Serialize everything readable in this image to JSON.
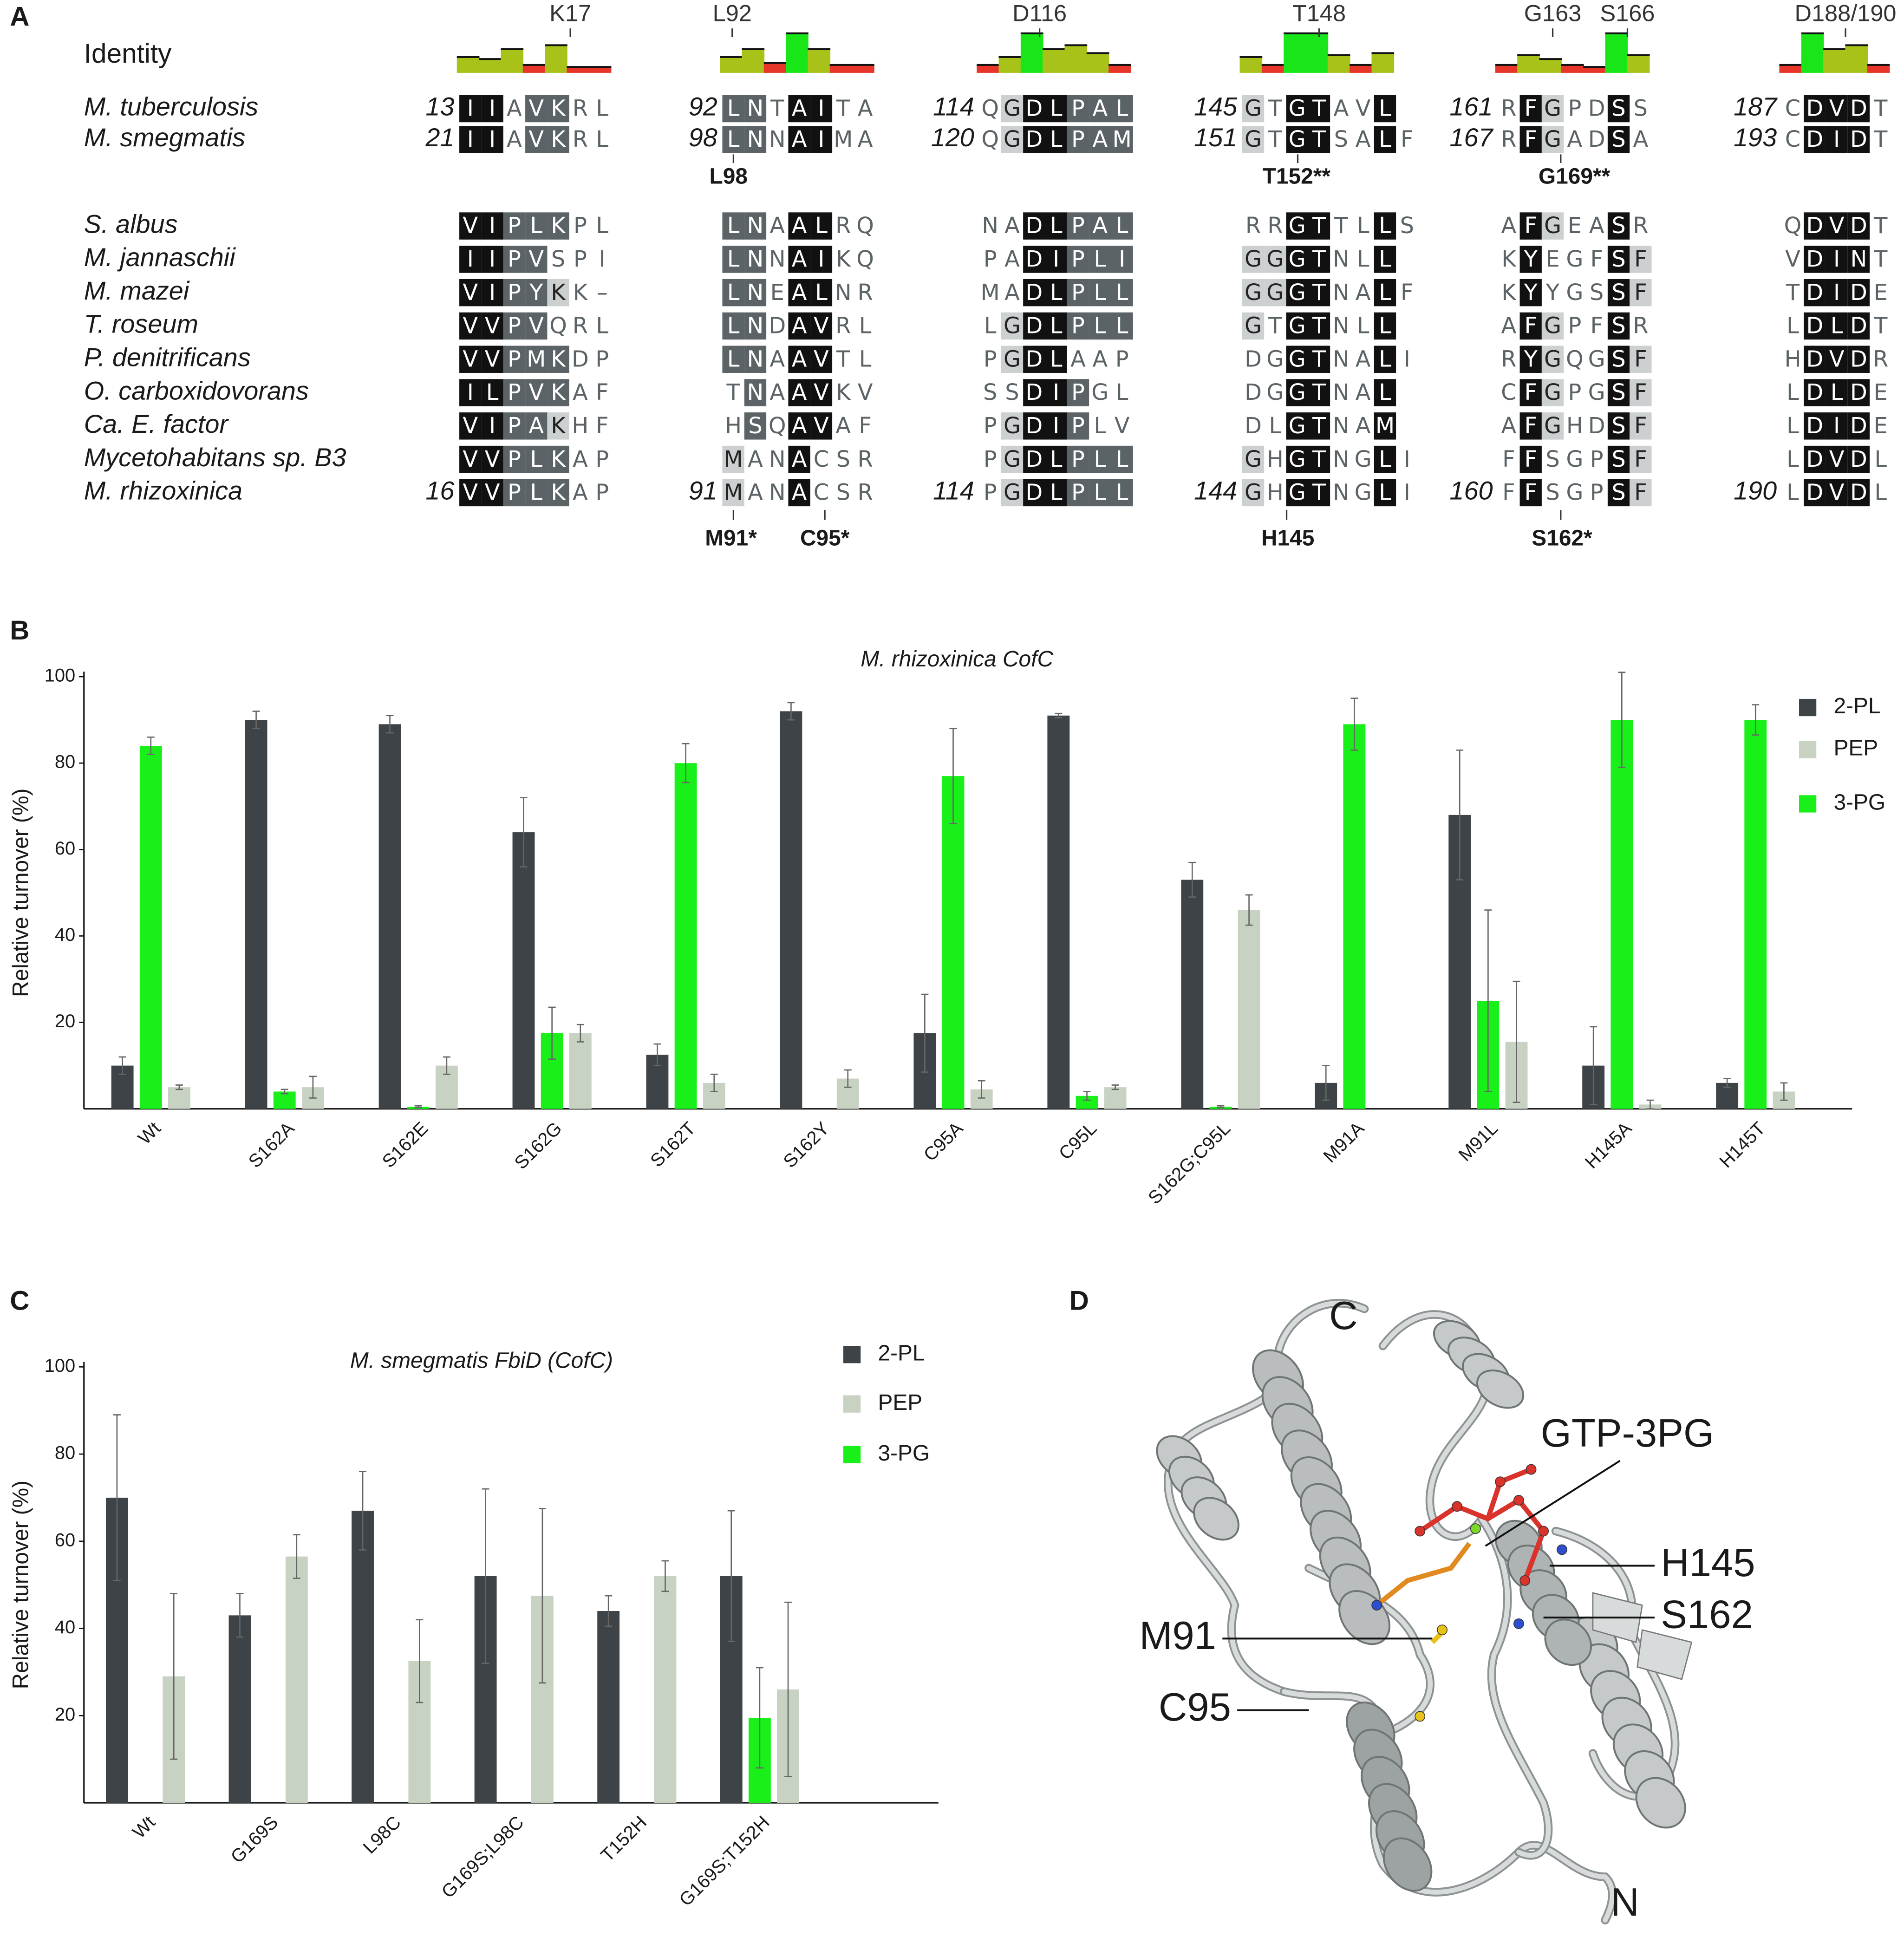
{
  "panels": [
    "A",
    "B",
    "C",
    "D"
  ],
  "alignment": {
    "identity_label": "Identity",
    "identity_colors": {
      "high": "#19e619",
      "mid": "#a8c21a",
      "low": "#e8352a"
    },
    "blocks": [
      {
        "markers": [
          "K17"
        ],
        "identity": [
          40,
          35,
          60,
          20,
          70,
          15,
          15
        ]
      },
      {
        "markers": [
          "L92"
        ],
        "identity": [
          40,
          60,
          25,
          100,
          60,
          20,
          20
        ]
      },
      {
        "markers": [
          "D116"
        ],
        "identity": [
          20,
          40,
          100,
          60,
          70,
          50,
          20
        ]
      },
      {
        "markers": [
          "T148"
        ],
        "identity": [
          40,
          20,
          100,
          100,
          45,
          20,
          50
        ]
      },
      {
        "markers": [
          "G163",
          "S166"
        ],
        "identity": [
          20,
          45,
          35,
          20,
          15,
          100,
          45
        ]
      },
      {
        "markers": [
          "D188/190"
        ],
        "identity": [
          20,
          100,
          60,
          70,
          20
        ]
      }
    ],
    "rows": [
      {
        "species": "M. tuberculosis",
        "blocks": [
          {
            "start": 13,
            "seq": "IIAVKRL",
            "shade": "kknddnn"
          },
          {
            "start": 92,
            "seq": "LNTAITA",
            "shade": "ddnkknn"
          },
          {
            "start": 114,
            "seq": "QGDLPAL",
            "shade": "nlkkddd"
          },
          {
            "start": 145,
            "seq": "GTGTAVL",
            "shade": "lnkknnk"
          },
          {
            "start": 161,
            "seq": "RFGPDSS",
            "shade": "nklnnkn"
          },
          {
            "start": 187,
            "seq": "CDVDT",
            "shade": "nkkkn"
          }
        ]
      },
      {
        "species": "M. smegmatis",
        "blocks": [
          {
            "start": 21,
            "seq": "IIAVKRL",
            "shade": "kknddnn"
          },
          {
            "start": 98,
            "seq": "LNNAIMA",
            "shade": "ddnkknn"
          },
          {
            "start": 120,
            "seq": "QGDLPAM",
            "shade": "nlkkddd"
          },
          {
            "start": 151,
            "seq": "GTGTSALF",
            "shade": "lnkknnkn"
          },
          {
            "start": 167,
            "seq": "RFGADSA",
            "shade": "nklnnkn"
          },
          {
            "start": 193,
            "seq": "CDIDT",
            "shade": "nkkkn"
          }
        ]
      },
      {
        "species": "S. albus",
        "blocks": [
          {
            "seq": "VIPLKPL",
            "shade": "kkdddnn"
          },
          {
            "seq": "LNAALRQ",
            "shade": "ddnkknn"
          },
          {
            "seq": "NADLPAL",
            "shade": "nnkkddd"
          },
          {
            "seq": "RRGTTLLS",
            "shade": "nnkknnkn"
          },
          {
            "seq": "AFGEASR",
            "shade": "nklnnkn"
          },
          {
            "seq": "QDVDT",
            "shade": "nkkkn"
          }
        ]
      },
      {
        "species": "M. jannaschii",
        "blocks": [
          {
            "seq": "IIPVSPI",
            "shade": "kkddnnn"
          },
          {
            "seq": "LNNAIKQ",
            "shade": "ddnkknn"
          },
          {
            "seq": "PADIPLI",
            "shade": "nnkkddd"
          },
          {
            "seq": "GGGTNLL",
            "shade": "llkknnk"
          },
          {
            "seq": "KYEGFSF",
            "shade": "nknnnkl"
          },
          {
            "seq": "VDINT",
            "shade": "nkkkn"
          }
        ]
      },
      {
        "species": "M. mazei",
        "blocks": [
          {
            "seq": "VIPYKK–",
            "shade": "kkddlnn"
          },
          {
            "seq": "LNEALNR",
            "shade": "ddnkknn"
          },
          {
            "seq": "MADLPLL",
            "shade": "nnkkddd"
          },
          {
            "seq": "GGGTNALF",
            "shade": "llkknnkn"
          },
          {
            "seq": "KYYGSSF",
            "shade": "nknnnkl"
          },
          {
            "seq": "TDIDE",
            "shade": "nkkkn"
          }
        ]
      },
      {
        "species": "T. roseum",
        "blocks": [
          {
            "seq": "VVPVQRL",
            "shade": "kkddnnn"
          },
          {
            "seq": "LNDAVRL",
            "shade": "ddnkknn"
          },
          {
            "seq": "LGDLPLL",
            "shade": "nlkkddd"
          },
          {
            "seq": "GTGTNLL",
            "shade": "lnkknnk"
          },
          {
            "seq": "AFGPFSR",
            "shade": "nklnnkn"
          },
          {
            "seq": "LDLDT",
            "shade": "nkkkn"
          }
        ]
      },
      {
        "species": "P. denitrificans",
        "blocks": [
          {
            "seq": "VVPMKDP",
            "shade": "kkdddnn"
          },
          {
            "seq": "LNAAVTL",
            "shade": "ddnkknn"
          },
          {
            "seq": "PGDLAAP",
            "shade": "nlkknnn"
          },
          {
            "seq": "DGGTNALI",
            "shade": "nnkknnkn"
          },
          {
            "seq": "RYGQGSF",
            "shade": "nklnnkl"
          },
          {
            "seq": "HDVDR",
            "shade": "nkkkn"
          }
        ]
      },
      {
        "species": "O. carboxidovorans",
        "blocks": [
          {
            "seq": "ILPVKAF",
            "shade": "kkdddnn"
          },
          {
            "seq": "TNAAVKV",
            "shade": "ndnkknn"
          },
          {
            "seq": "SSDIPGL",
            "shade": "nnkkdnn"
          },
          {
            "seq": "DGGTNAL",
            "shade": "nnkknnk"
          },
          {
            "seq": "CFGPGSF",
            "shade": "nklnnkl"
          },
          {
            "seq": "LDLDE",
            "shade": "nkkkn"
          }
        ]
      },
      {
        "species": "Ca. E. factor",
        "blocks": [
          {
            "seq": "VIPAKHF",
            "shade": "kkddlnn"
          },
          {
            "seq": "HSQAVAF",
            "shade": "ndnkknn"
          },
          {
            "seq": "PGDIPLV",
            "shade": "nlkkdnn"
          },
          {
            "seq": "DLGTNAM",
            "shade": "nnkknnk"
          },
          {
            "seq": "AFGHDSF",
            "shade": "nklnnkl"
          },
          {
            "seq": "LDIDE",
            "shade": "nkkkn"
          }
        ]
      },
      {
        "species": "Mycetohabitans sp. B3",
        "blocks": [
          {
            "seq": "VVPLKAP",
            "shade": "kkdddnn"
          },
          {
            "seq": "MANACSR",
            "shade": "lnnknnn"
          },
          {
            "seq": "PGDLPLL",
            "shade": "nlkkddd"
          },
          {
            "seq": "GHGTNGLI",
            "shade": "lnkknnkn"
          },
          {
            "seq": "FFSGPSF",
            "shade": "nknnnkl"
          },
          {
            "seq": "LDVDL",
            "shade": "nkkkn"
          }
        ]
      },
      {
        "species": "M. rhizoxinica",
        "blocks": [
          {
            "start": 16,
            "seq": "VVPLKAP",
            "shade": "kkdddnn"
          },
          {
            "start": 91,
            "seq": "MANACSR",
            "shade": "lnnknnn"
          },
          {
            "start": 114,
            "seq": "PGDLPLL",
            "shade": "nlkkddd"
          },
          {
            "start": 144,
            "seq": "GHGTNGLI",
            "shade": "lnkknnkn"
          },
          {
            "start": 160,
            "seq": "FFSGPSF",
            "shade": "nknnnkl"
          },
          {
            "start": 190,
            "seq": "LDVDL",
            "shade": "nkkkn"
          }
        ]
      }
    ],
    "annotations_top": [
      "L98",
      "T152**",
      "G169**"
    ],
    "annotations_bottom": [
      "M91*",
      "C95*",
      "H145",
      "S162*"
    ]
  },
  "chart_data": [
    {
      "type": "bar",
      "title": "M. rhizoxinica CofC",
      "ylabel": "Relative turnover (%)",
      "categories": [
        "Wt",
        "S162A",
        "S162E",
        "S162G",
        "S162T",
        "S162Y",
        "C95A",
        "C95L",
        "S162G;C95L",
        "M91A",
        "M91L",
        "H145A",
        "H145T"
      ],
      "series": [
        {
          "name": "2-PL",
          "color": "#3d4346",
          "values": [
            10,
            90,
            89,
            64,
            12.5,
            92,
            17.5,
            91,
            53,
            6,
            68,
            10,
            6
          ],
          "errors": [
            2,
            2,
            2,
            8,
            2.5,
            2,
            9,
            0.5,
            4,
            4,
            15,
            9,
            1
          ]
        },
        {
          "name": "PEP",
          "color": "#c7d2c3",
          "values": [
            5,
            5,
            10,
            17.5,
            6,
            7,
            4.5,
            5,
            46,
            0,
            15.5,
            1,
            4
          ],
          "errors": [
            0.5,
            2.5,
            2,
            2,
            2,
            2,
            2,
            0.5,
            3.5,
            0,
            14,
            1,
            2
          ]
        },
        {
          "name": "3-PG",
          "color": "#19f019",
          "values": [
            84,
            4,
            0.5,
            17.5,
            80,
            0,
            77,
            3,
            0.5,
            89,
            25,
            90,
            90
          ],
          "errors": [
            2,
            0.5,
            0.2,
            6,
            4.5,
            0,
            11,
            1,
            0.2,
            6,
            21,
            11,
            3.5
          ]
        }
      ],
      "ylim": [
        0,
        100
      ],
      "yticks": [
        20,
        40,
        60,
        80,
        100
      ]
    },
    {
      "type": "bar",
      "title": "M. smegmatis FbiD (CofC)",
      "ylabel": "Relative turnover (%)",
      "categories": [
        "Wt",
        "G169S",
        "L98C",
        "G169S;L98C",
        "T152H",
        "G169S;T152H"
      ],
      "series": [
        {
          "name": "2-PL",
          "color": "#3d4346",
          "values": [
            70,
            43,
            67,
            52,
            44,
            52
          ],
          "errors": [
            19,
            5,
            9,
            20,
            3.5,
            15
          ]
        },
        {
          "name": "PEP",
          "color": "#c7d2c3",
          "values": [
            29,
            56.5,
            32.5,
            47.5,
            52,
            26
          ],
          "errors": [
            19,
            5,
            9.5,
            20,
            3.5,
            20
          ]
        },
        {
          "name": "3-PG",
          "color": "#19f019",
          "values": [
            null,
            null,
            null,
            null,
            null,
            19.5
          ],
          "errors": [
            null,
            null,
            null,
            null,
            null,
            11.5
          ]
        }
      ],
      "ylim": [
        0,
        100
      ],
      "yticks": [
        20,
        40,
        60,
        80,
        100
      ]
    }
  ],
  "structure": {
    "termini": [
      "C",
      "N"
    ],
    "ligand": "GTP-3PG",
    "residues": [
      "H145",
      "S162",
      "M91",
      "C95"
    ]
  }
}
